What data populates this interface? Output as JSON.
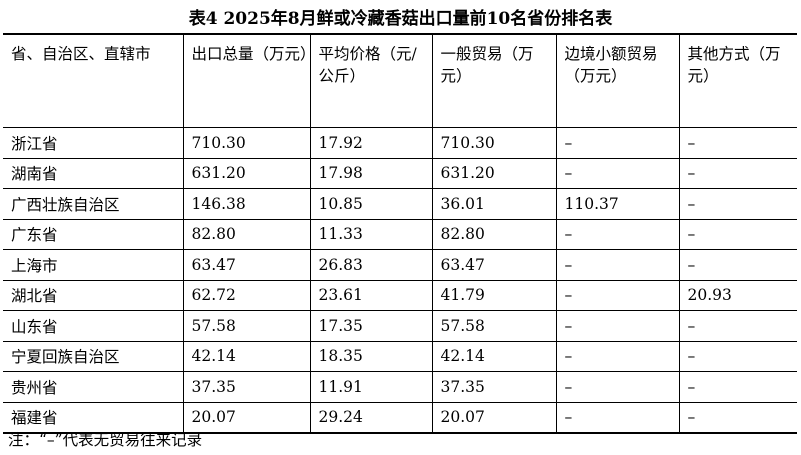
{
  "title": "表4 2025年8月鲜或冷藏香菇出口量前10名省份排名表",
  "table": {
    "headers": [
      "省、自治区、直辖市",
      "出口总量（万元）",
      "平均价格（元/公斤）",
      "一般贸易（万元）",
      "边境小额贸易（万元）",
      "其他方式（万元）"
    ],
    "rows": [
      [
        "浙江省",
        "710.30",
        "17.92",
        "710.30",
        "–",
        "–"
      ],
      [
        "湖南省",
        "631.20",
        "17.98",
        "631.20",
        "–",
        "–"
      ],
      [
        "广西壮族自治区",
        "146.38",
        "10.85",
        "36.01",
        "110.37",
        "–"
      ],
      [
        "广东省",
        "82.80",
        "11.33",
        "82.80",
        "–",
        "–"
      ],
      [
        "上海市",
        "63.47",
        "26.83",
        "63.47",
        "–",
        "–"
      ],
      [
        "湖北省",
        "62.72",
        "23.61",
        "41.79",
        "–",
        "20.93"
      ],
      [
        "山东省",
        "57.58",
        "17.35",
        "57.58",
        "–",
        "–"
      ],
      [
        "宁夏回族自治区",
        "42.14",
        "18.35",
        "42.14",
        "–",
        "–"
      ],
      [
        "贵州省",
        "37.35",
        "11.91",
        "37.35",
        "–",
        "–"
      ],
      [
        "福建省",
        "20.07",
        "29.24",
        "20.07",
        "–",
        "–"
      ]
    ]
  },
  "note": "注：“–”代表无贸易往来记录"
}
